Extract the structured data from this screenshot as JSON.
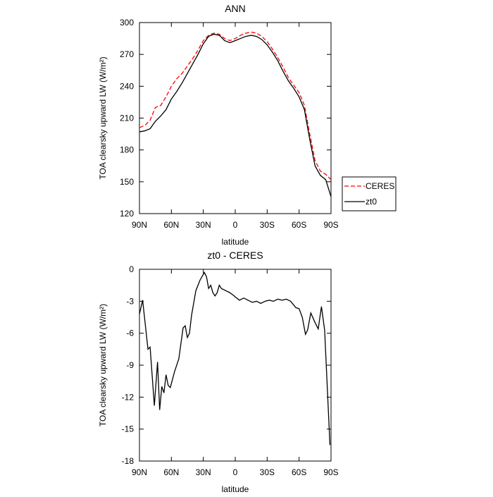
{
  "chart_data": [
    {
      "type": "line",
      "title": "ANN",
      "xlabel": "latitude",
      "ylabel": "TOA clearsky upward LW (W/m²)",
      "x": [
        90,
        85,
        80,
        75,
        70,
        65,
        60,
        55,
        50,
        45,
        40,
        35,
        30,
        25,
        20,
        15,
        10,
        5,
        0,
        -5,
        -10,
        -15,
        -20,
        -25,
        -30,
        -35,
        -40,
        -45,
        -50,
        -55,
        -60,
        -65,
        -70,
        -75,
        -80,
        -85,
        -90
      ],
      "series": [
        {
          "name": "CERES",
          "color": "#ff0000",
          "linestyle": "dashed",
          "values": [
            201,
            203,
            208,
            220,
            222,
            230,
            240,
            247,
            252,
            259,
            266,
            274,
            283,
            288,
            290,
            289,
            285,
            283,
            285,
            288,
            290,
            291,
            290,
            287,
            282,
            275,
            267,
            258,
            248,
            241,
            234,
            222,
            195,
            170,
            160,
            157,
            152
          ]
        },
        {
          "name": "zt0",
          "color": "#000000",
          "linestyle": "solid",
          "values": [
            197,
            198,
            200,
            207,
            212,
            218,
            228,
            235,
            243,
            252,
            261,
            270,
            280,
            287,
            289,
            288,
            283,
            281,
            283,
            285,
            287,
            288,
            287,
            284,
            279,
            272,
            264,
            254,
            245,
            238,
            230,
            218,
            190,
            165,
            156,
            152,
            136
          ]
        }
      ],
      "xlim": [
        90,
        -90
      ],
      "xticks": [
        {
          "value": 90,
          "label": "90N"
        },
        {
          "value": 60,
          "label": "60N"
        },
        {
          "value": 30,
          "label": "30N"
        },
        0,
        {
          "value": -30,
          "label": "30S"
        },
        {
          "value": -60,
          "label": "60S"
        },
        {
          "value": -90,
          "label": "90S"
        }
      ],
      "ylim": [
        120,
        300
      ],
      "yticks": [
        120,
        150,
        180,
        210,
        240,
        270,
        300
      ],
      "legend": "right"
    },
    {
      "type": "line",
      "title": "zt0 - CERES",
      "xlabel": "latitude",
      "ylabel": "TOA clearsky upward LW (W/m²)",
      "color": "#000000",
      "x": [
        90,
        87,
        82,
        80,
        76,
        73,
        71,
        69,
        67,
        65,
        63,
        61,
        57,
        53,
        49,
        47,
        45,
        43,
        41,
        37,
        33,
        29,
        27,
        25,
        23,
        21,
        19,
        17,
        15,
        13,
        9,
        5,
        1,
        0,
        -4,
        -8,
        -12,
        -16,
        -20,
        -24,
        -28,
        -32,
        -36,
        -40,
        -44,
        -48,
        -52,
        -57,
        -60,
        -63,
        -66,
        -68,
        -71,
        -75,
        -78,
        -81,
        -84,
        -89
      ],
      "values": [
        -4.2,
        -2.9,
        -7.5,
        -7.3,
        -12.8,
        -8.7,
        -13.2,
        -11.0,
        -11.6,
        -9.9,
        -10.9,
        -11.1,
        -9.6,
        -8.4,
        -5.5,
        -5.3,
        -6.4,
        -6.0,
        -4.3,
        -2.0,
        -1.0,
        -0.3,
        -0.7,
        -1.8,
        -1.5,
        -2.2,
        -2.5,
        -2.2,
        -1.5,
        -1.8,
        -2.0,
        -2.2,
        -2.5,
        -2.6,
        -2.9,
        -2.7,
        -2.9,
        -3.1,
        -3.0,
        -3.2,
        -3.0,
        -2.9,
        -3.0,
        -2.8,
        -2.9,
        -2.8,
        -3.0,
        -3.6,
        -3.7,
        -4.5,
        -6.1,
        -5.7,
        -4.1,
        -5.0,
        -5.6,
        -3.5,
        -5.7,
        -16.5
      ],
      "xlim": [
        90,
        -90
      ],
      "xticks": [
        {
          "value": 90,
          "label": "90N"
        },
        {
          "value": 60,
          "label": "60N"
        },
        {
          "value": 30,
          "label": "30N"
        },
        0,
        {
          "value": -30,
          "label": "30S"
        },
        {
          "value": -60,
          "label": "60S"
        },
        {
          "value": -90,
          "label": "90S"
        }
      ],
      "ylim": [
        -18,
        0
      ],
      "yticks": [
        -18,
        -15,
        -12,
        -9,
        -6,
        -3,
        0
      ]
    }
  ]
}
